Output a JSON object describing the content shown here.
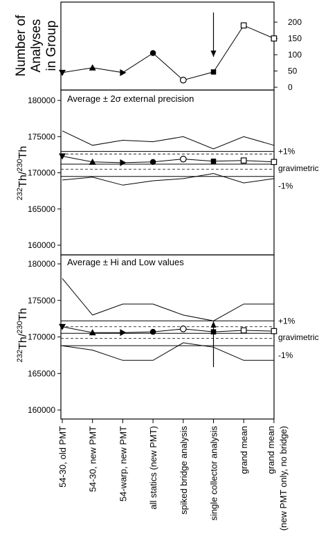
{
  "chart_data": [
    {
      "type": "line",
      "panel": "top",
      "ylabel": "Number of Analyses in Group",
      "y_axis_side": "right",
      "ylim": [
        0,
        200
      ],
      "y_ticks": [
        0,
        50,
        100,
        150,
        200
      ],
      "categories": [
        "54-30, old PMT",
        "54-30, new PMT",
        "54-warp, new PMT",
        "all statics (new PMT)",
        "spiked bridge analysis",
        "single collector analysis",
        "grand mean",
        "grand mean (new PMT only, no bridge)"
      ],
      "series": [
        {
          "values": [
            45,
            60,
            45,
            105,
            22,
            47,
            190,
            150
          ],
          "markers": [
            "triangle-down",
            "triangle-up",
            "triangle-right",
            "circle",
            "circle-open",
            "square",
            "square-open",
            "square-open"
          ]
        }
      ],
      "annotations": [
        {
          "type": "arrow-down",
          "category": "single collector analysis"
        }
      ]
    },
    {
      "type": "line",
      "panel": "middle",
      "title": "Average ± 2σ external precision",
      "ylabel": "232Th/230Th",
      "ylim": [
        160000,
        182000
      ],
      "y_ticks": [
        160000,
        165000,
        170000,
        175000,
        180000
      ],
      "categories": [
        "54-30, old PMT",
        "54-30, new PMT",
        "54-warp, new PMT",
        "all statics (new PMT)",
        "spiked bridge analysis",
        "single collector analysis",
        "grand mean",
        "grand mean (new PMT only, no bridge)"
      ],
      "series": [
        {
          "role": "mean",
          "values": [
            172300,
            171500,
            171400,
            171500,
            171900,
            171600,
            171700,
            171500
          ],
          "markers": [
            "triangle-down",
            "triangle-up",
            "triangle-right",
            "circle",
            "circle-open",
            "square",
            "square-open",
            "square-open"
          ]
        },
        {
          "role": "upper",
          "values": [
            175800,
            173800,
            174500,
            174300,
            175000,
            173300,
            175000,
            173800
          ]
        },
        {
          "role": "lower",
          "values": [
            169000,
            169400,
            168300,
            168900,
            169200,
            169900,
            168600,
            169200
          ]
        }
      ],
      "reference_lines": [
        {
          "label": "+1%",
          "value": 172950,
          "style": "solid"
        },
        {
          "label": "gravimetric",
          "value": 171200,
          "style": "solid"
        },
        {
          "label": "-1%",
          "value": 169500,
          "style": "solid"
        },
        {
          "value": 172600,
          "style": "dashed"
        },
        {
          "value": 170500,
          "style": "dashed"
        }
      ],
      "right_labels": [
        "+1%",
        "gravimetric",
        "-1%"
      ]
    },
    {
      "type": "line",
      "panel": "bottom",
      "title": "Average ± Hi and Low values",
      "ylabel": "232Th/230Th",
      "ylim": [
        160000,
        181000
      ],
      "y_ticks": [
        160000,
        165000,
        170000,
        175000,
        180000
      ],
      "categories": [
        "54-30, old PMT",
        "54-30, new PMT",
        "54-warp, new PMT",
        "all statics (new PMT)",
        "spiked bridge analysis",
        "single collector analysis",
        "grand mean",
        "grand mean (new PMT only, no bridge)"
      ],
      "series": [
        {
          "role": "mean",
          "values": [
            171400,
            170600,
            170600,
            170700,
            171100,
            170700,
            170900,
            170800
          ],
          "markers": [
            "triangle-down",
            "triangle-up",
            "triangle-right",
            "circle",
            "circle-open",
            "square",
            "square-open",
            "square-open"
          ]
        },
        {
          "role": "high",
          "values": [
            178000,
            173000,
            174500,
            174500,
            173000,
            172200,
            174500,
            174500
          ]
        },
        {
          "role": "low",
          "values": [
            168800,
            168200,
            166800,
            166800,
            169200,
            168600,
            166800,
            166800
          ]
        }
      ],
      "reference_lines": [
        {
          "label": "+1%",
          "value": 172200,
          "style": "solid"
        },
        {
          "label": "gravimetric",
          "value": 170500,
          "style": "solid"
        },
        {
          "label": "-1%",
          "value": 168800,
          "style": "solid"
        },
        {
          "value": 171400,
          "style": "dashed"
        },
        {
          "value": 169800,
          "style": "dashed"
        }
      ],
      "right_labels": [
        "+1%",
        "gravimetric",
        "-1%"
      ],
      "annotations": [
        {
          "type": "arrow-up",
          "category": "single collector analysis"
        }
      ]
    }
  ],
  "x_axis": {
    "tick_labels": [
      "54-30, old PMT",
      "54-30, new PMT",
      "54-warp, new PMT",
      "all statics (new PMT)",
      "spiked bridge analysis",
      "single collector analysis",
      "grand mean",
      "grand mean",
      "(new PMT only, no bridge)"
    ]
  },
  "labels": {
    "top_ylabel_line1": "Number of",
    "top_ylabel_line2": "Analyses",
    "top_ylabel_line3": "in Group",
    "ratio_sup1": "232",
    "ratio_mid": "Th/",
    "ratio_sup2": "230",
    "ratio_end": "Th"
  }
}
